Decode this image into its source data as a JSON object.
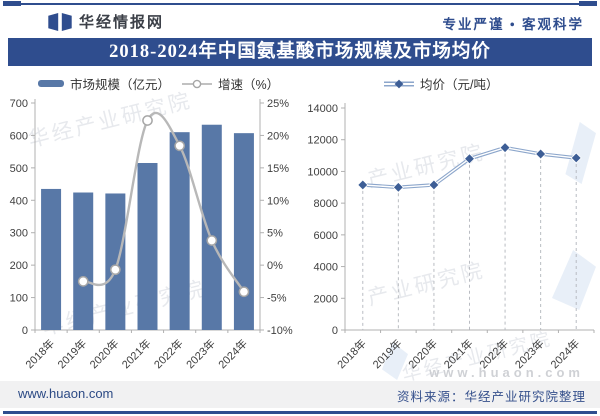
{
  "header": {
    "brand": "华经情报网",
    "slogan": "专业严谨 • 客观科学",
    "logo_icon": "book-flag-icon"
  },
  "title": "2018-2024年中国氨基酸市场规模及市场均价",
  "legend": {
    "market_size": "市场规模（亿元）",
    "growth": "增速（%）",
    "avg_price": "均价（元/吨）"
  },
  "footer": {
    "site": "www.huaon.com",
    "source": "资料来源：华经产业研究院整理"
  },
  "watermarks": {
    "text1": "华经产业研究院",
    "text2": "产业研究院",
    "text3": "华经产业研究院",
    "url": "www.huaon.com"
  },
  "colors": {
    "navy": "#2f4d8e",
    "bar": "#5878a7",
    "growth_line": "#b8b8b8",
    "growth_marker_stroke": "#a6a6a6",
    "price_line": "#8ca6cb",
    "price_marker": "#3d5e96",
    "axis": "#b0b0b0",
    "tick_text": "#3f3f3f"
  },
  "chart_data": [
    {
      "type": "bar",
      "title": "市场规模及增速",
      "categories": [
        "2018年",
        "2019年",
        "2020年",
        "2021年",
        "2022年",
        "2023年",
        "2024年"
      ],
      "series": [
        {
          "name": "市场规模（亿元）",
          "type": "bar",
          "axis": "left",
          "values": [
            435,
            424,
            421,
            515,
            610,
            633,
            607
          ]
        },
        {
          "name": "增速（%）",
          "type": "line",
          "axis": "right",
          "values": [
            null,
            -2.5,
            -0.7,
            22.3,
            18.4,
            3.8,
            -4.1
          ]
        }
      ],
      "left_axis": {
        "min": 0,
        "max": 700,
        "step": 100,
        "suffix": ""
      },
      "right_axis": {
        "min": -10,
        "max": 25,
        "step": 5,
        "suffix": "%"
      },
      "grid": false,
      "legend_position": "top"
    },
    {
      "type": "line",
      "title": "市场均价",
      "categories": [
        "2018年",
        "2019年",
        "2020年",
        "2021年",
        "2022年",
        "2023年",
        "2024年"
      ],
      "series": [
        {
          "name": "均价（元/吨）",
          "type": "line",
          "marker": "diamond",
          "values": [
            9150,
            9000,
            9150,
            10800,
            11500,
            11100,
            10850
          ]
        }
      ],
      "y_axis": {
        "min": 0,
        "max": 14000,
        "step": 2000,
        "suffix": ""
      },
      "drop_lines": "dashed",
      "grid": false,
      "legend_position": "top"
    }
  ]
}
